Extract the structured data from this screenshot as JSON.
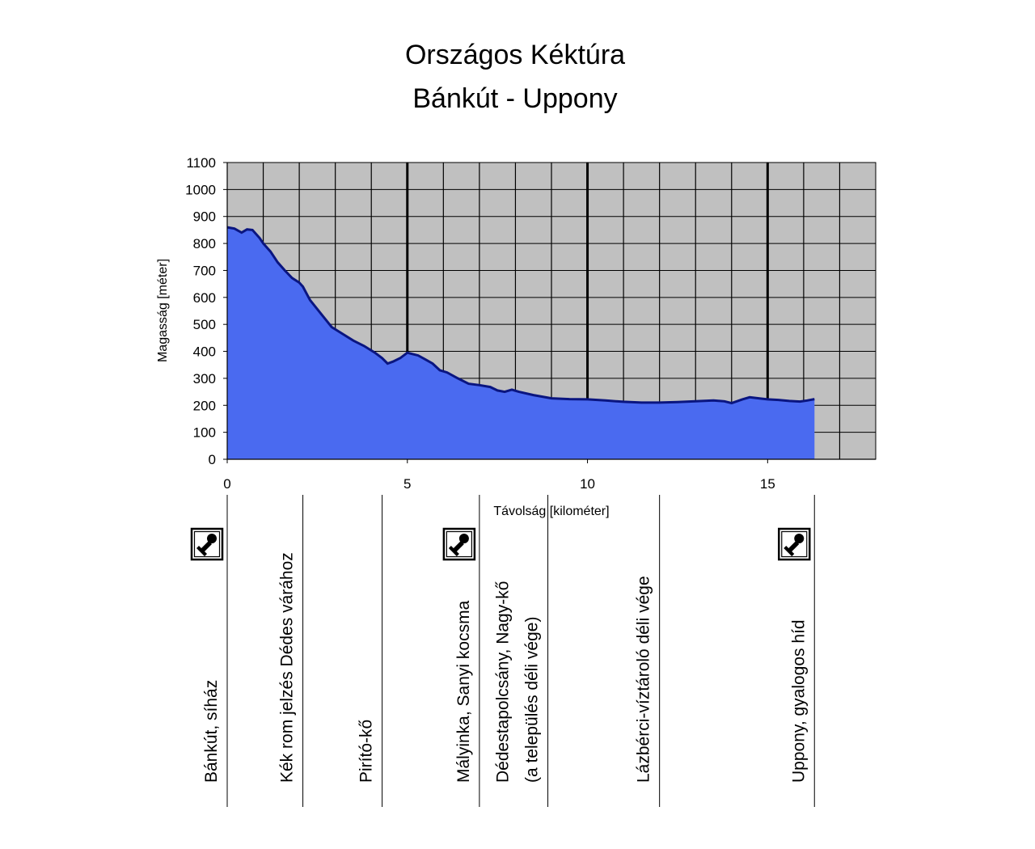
{
  "chart_data": {
    "type": "area",
    "title": "Országos Kéktúra",
    "subtitle": "Bánkút - Uppony",
    "xlabel": "Távolság [kilométer]",
    "ylabel": "Magasság [méter]",
    "xlim": [
      0,
      18
    ],
    "ylim": [
      0,
      1100
    ],
    "x_ticks": [
      0,
      5,
      10,
      15
    ],
    "y_ticks": [
      0,
      100,
      200,
      300,
      400,
      500,
      600,
      700,
      800,
      900,
      1000,
      1100
    ],
    "grid": true,
    "colors": {
      "fill": "#4a6af0",
      "line": "#0a1580",
      "plot_bg": "#c0c0c0",
      "grid": "#000000"
    },
    "series": [
      {
        "x": [
          0,
          0.2,
          0.4,
          0.55,
          0.7,
          0.9,
          1.0,
          1.2,
          1.4,
          1.6,
          1.8,
          2.0,
          2.1,
          2.3,
          2.6,
          2.9,
          3.2,
          3.5,
          3.8,
          4.1,
          4.3,
          4.45,
          4.6,
          4.8,
          5.0,
          5.15,
          5.3,
          5.5,
          5.7,
          5.9,
          6.1,
          6.4,
          6.7,
          7.0,
          7.3,
          7.5,
          7.7,
          7.9,
          8.1,
          8.5,
          9.0,
          9.5,
          10.0,
          10.5,
          11.0,
          11.5,
          12.0,
          12.5,
          13.0,
          13.5,
          13.8,
          14.0,
          14.3,
          14.5,
          14.8,
          15.0,
          15.3,
          15.6,
          15.9,
          16.1,
          16.3
        ],
        "y": [
          860,
          855,
          840,
          852,
          850,
          820,
          800,
          770,
          730,
          700,
          672,
          655,
          640,
          590,
          540,
          490,
          465,
          440,
          420,
          395,
          375,
          355,
          362,
          375,
          395,
          390,
          385,
          370,
          355,
          330,
          322,
          300,
          280,
          275,
          268,
          255,
          250,
          258,
          250,
          238,
          226,
          223,
          222,
          218,
          213,
          210,
          210,
          212,
          215,
          218,
          215,
          208,
          222,
          230,
          225,
          222,
          220,
          216,
          214,
          218,
          223
        ]
      }
    ],
    "stamp_icon": "stamp-icon",
    "waypoints": [
      {
        "km": 0,
        "lines": [
          "Bánkút, síház"
        ],
        "stamp": true
      },
      {
        "km": 2.1,
        "lines": [
          "Kék rom jelzés Dédes várához"
        ],
        "stamp": false
      },
      {
        "km": 4.3,
        "lines": [
          "Pirító-kő"
        ],
        "stamp": false
      },
      {
        "km": 7.0,
        "lines": [
          "Mályinka, Sanyi kocsma"
        ],
        "stamp": true
      },
      {
        "km": 8.9,
        "lines": [
          "Dédestapolcsány, Nagy-kő",
          "(a település déli vége)"
        ],
        "stamp": false
      },
      {
        "km": 12.0,
        "lines": [
          "Lázbérci-víztároló déli vége"
        ],
        "stamp": false
      },
      {
        "km": 16.3,
        "lines": [
          "Uppony, gyalogos híd"
        ],
        "stamp": true
      }
    ]
  }
}
